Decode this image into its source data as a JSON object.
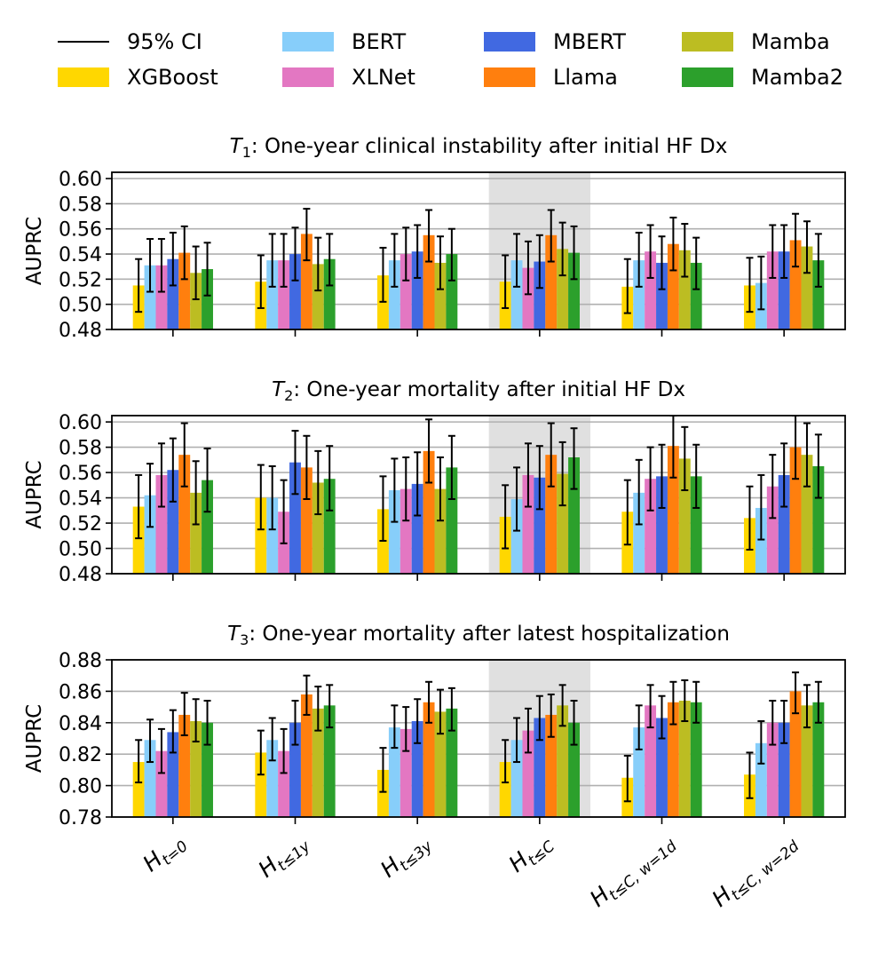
{
  "legend": {
    "ci_label": "95% CI",
    "items": [
      {
        "name": "XGBoost",
        "color": "#FFD700"
      },
      {
        "name": "BERT",
        "color": "#87CEFA"
      },
      {
        "name": "XLNet",
        "color": "#E377C2"
      },
      {
        "name": "MBERT",
        "color": "#4169E1"
      },
      {
        "name": "Llama",
        "color": "#FF7F0E"
      },
      {
        "name": "Mamba",
        "color": "#BCBD22"
      },
      {
        "name": "Mamba2",
        "color": "#2CA02C"
      }
    ]
  },
  "highlight_category_index": 3,
  "chart_data": [
    {
      "type": "bar",
      "title_label": "T",
      "title_sub": "1",
      "title_rest": ": One-year clinical instability after initial HF Dx",
      "ylabel": "AUPRC",
      "ylim": [
        0.48,
        0.605
      ],
      "yticks": [
        "0.48",
        "0.50",
        "0.52",
        "0.54",
        "0.56",
        "0.58",
        "0.60"
      ],
      "categories": [
        "H_{t=0}",
        "H_{t≤1y}",
        "H_{t≤3y}",
        "H_{t≤C}",
        "H_{t≤C, w=1d}",
        "H_{t≤C, w=2d}"
      ],
      "show_xticklabels": false,
      "series": [
        {
          "name": "XGBoost",
          "values": [
            0.515,
            0.518,
            0.523,
            0.518,
            0.514,
            0.515
          ],
          "ci_low": [
            0.494,
            0.497,
            0.502,
            0.497,
            0.493,
            0.494
          ],
          "ci_high": [
            0.536,
            0.539,
            0.545,
            0.539,
            0.536,
            0.537
          ]
        },
        {
          "name": "BERT",
          "values": [
            0.531,
            0.535,
            0.535,
            0.535,
            0.535,
            0.517
          ],
          "ci_low": [
            0.51,
            0.514,
            0.514,
            0.514,
            0.514,
            0.496
          ],
          "ci_high": [
            0.552,
            0.556,
            0.556,
            0.556,
            0.557,
            0.538
          ]
        },
        {
          "name": "XLNet",
          "values": [
            0.531,
            0.535,
            0.54,
            0.529,
            0.542,
            0.542
          ],
          "ci_low": [
            0.51,
            0.514,
            0.519,
            0.508,
            0.521,
            0.521
          ],
          "ci_high": [
            0.552,
            0.556,
            0.561,
            0.55,
            0.563,
            0.563
          ]
        },
        {
          "name": "MBERT",
          "values": [
            0.536,
            0.54,
            0.542,
            0.534,
            0.533,
            0.542
          ],
          "ci_low": [
            0.515,
            0.519,
            0.521,
            0.513,
            0.512,
            0.521
          ],
          "ci_high": [
            0.557,
            0.561,
            0.563,
            0.555,
            0.554,
            0.563
          ]
        },
        {
          "name": "Llama",
          "values": [
            0.541,
            0.556,
            0.555,
            0.555,
            0.548,
            0.551
          ],
          "ci_low": [
            0.52,
            0.535,
            0.534,
            0.534,
            0.527,
            0.53
          ],
          "ci_high": [
            0.562,
            0.576,
            0.575,
            0.575,
            0.569,
            0.572
          ]
        },
        {
          "name": "Mamba",
          "values": [
            0.525,
            0.532,
            0.533,
            0.544,
            0.543,
            0.546
          ],
          "ci_low": [
            0.504,
            0.511,
            0.512,
            0.523,
            0.522,
            0.525
          ],
          "ci_high": [
            0.546,
            0.553,
            0.554,
            0.565,
            0.564,
            0.566
          ]
        },
        {
          "name": "Mamba2",
          "values": [
            0.528,
            0.536,
            0.54,
            0.541,
            0.533,
            0.535
          ],
          "ci_low": [
            0.507,
            0.515,
            0.519,
            0.52,
            0.512,
            0.514
          ],
          "ci_high": [
            0.549,
            0.556,
            0.56,
            0.562,
            0.553,
            0.556
          ]
        }
      ]
    },
    {
      "type": "bar",
      "title_label": "T",
      "title_sub": "2",
      "title_rest": ": One-year mortality after initial HF Dx",
      "ylabel": "AUPRC",
      "ylim": [
        0.48,
        0.605
      ],
      "yticks": [
        "0.48",
        "0.50",
        "0.52",
        "0.54",
        "0.56",
        "0.58",
        "0.60"
      ],
      "categories": [
        "H_{t=0}",
        "H_{t≤1y}",
        "H_{t≤3y}",
        "H_{t≤C}",
        "H_{t≤C, w=1d}",
        "H_{t≤C, w=2d}"
      ],
      "show_xticklabels": false,
      "series": [
        {
          "name": "XGBoost",
          "values": [
            0.533,
            0.54,
            0.531,
            0.525,
            0.529,
            0.524
          ],
          "ci_low": [
            0.508,
            0.515,
            0.506,
            0.5,
            0.503,
            0.499
          ],
          "ci_high": [
            0.558,
            0.566,
            0.557,
            0.55,
            0.554,
            0.549
          ]
        },
        {
          "name": "BERT",
          "values": [
            0.542,
            0.54,
            0.546,
            0.539,
            0.544,
            0.532
          ],
          "ci_low": [
            0.517,
            0.515,
            0.521,
            0.514,
            0.519,
            0.507
          ],
          "ci_high": [
            0.567,
            0.565,
            0.571,
            0.564,
            0.57,
            0.558
          ]
        },
        {
          "name": "XLNet",
          "values": [
            0.558,
            0.529,
            0.547,
            0.558,
            0.555,
            0.549
          ],
          "ci_low": [
            0.533,
            0.504,
            0.522,
            0.533,
            0.53,
            0.524
          ],
          "ci_high": [
            0.583,
            0.554,
            0.572,
            0.583,
            0.58,
            0.574
          ]
        },
        {
          "name": "MBERT",
          "values": [
            0.562,
            0.568,
            0.551,
            0.556,
            0.557,
            0.558
          ],
          "ci_low": [
            0.537,
            0.543,
            0.526,
            0.531,
            0.532,
            0.533
          ],
          "ci_high": [
            0.587,
            0.593,
            0.576,
            0.581,
            0.582,
            0.583
          ]
        },
        {
          "name": "Llama",
          "values": [
            0.574,
            0.564,
            0.577,
            0.574,
            0.581,
            0.58
          ],
          "ci_low": [
            0.549,
            0.539,
            0.552,
            0.549,
            0.556,
            0.555
          ],
          "ci_high": [
            0.599,
            0.589,
            0.602,
            0.599,
            0.605,
            0.605
          ]
        },
        {
          "name": "Mamba",
          "values": [
            0.544,
            0.552,
            0.547,
            0.559,
            0.571,
            0.574
          ],
          "ci_low": [
            0.519,
            0.527,
            0.522,
            0.534,
            0.546,
            0.549
          ],
          "ci_high": [
            0.569,
            0.577,
            0.572,
            0.584,
            0.596,
            0.599
          ]
        },
        {
          "name": "Mamba2",
          "values": [
            0.554,
            0.555,
            0.564,
            0.572,
            0.557,
            0.565
          ],
          "ci_low": [
            0.529,
            0.53,
            0.539,
            0.547,
            0.532,
            0.54
          ],
          "ci_high": [
            0.579,
            0.581,
            0.589,
            0.595,
            0.582,
            0.59
          ]
        }
      ]
    },
    {
      "type": "bar",
      "title_label": "T",
      "title_sub": "3",
      "title_rest": ": One-year mortality after latest hospitalization",
      "ylabel": "AUPRC",
      "ylim": [
        0.78,
        0.88
      ],
      "yticks": [
        "0.78",
        "0.80",
        "0.82",
        "0.84",
        "0.86",
        "0.88"
      ],
      "categories": [
        "H_{t=0}",
        "H_{t≤1y}",
        "H_{t≤3y}",
        "H_{t≤C}",
        "H_{t≤C, w=1d}",
        "H_{t≤C, w=2d}"
      ],
      "show_xticklabels": true,
      "series": [
        {
          "name": "XGBoost",
          "values": [
            0.815,
            0.821,
            0.81,
            0.815,
            0.805,
            0.807
          ],
          "ci_low": [
            0.802,
            0.807,
            0.796,
            0.802,
            0.79,
            0.792
          ],
          "ci_high": [
            0.829,
            0.835,
            0.824,
            0.829,
            0.819,
            0.821
          ]
        },
        {
          "name": "BERT",
          "values": [
            0.829,
            0.829,
            0.837,
            0.829,
            0.837,
            0.827
          ],
          "ci_low": [
            0.815,
            0.816,
            0.824,
            0.815,
            0.823,
            0.814
          ],
          "ci_high": [
            0.842,
            0.843,
            0.851,
            0.843,
            0.851,
            0.841
          ]
        },
        {
          "name": "XLNet",
          "values": [
            0.822,
            0.822,
            0.836,
            0.835,
            0.851,
            0.84
          ],
          "ci_low": [
            0.808,
            0.808,
            0.822,
            0.821,
            0.837,
            0.826
          ],
          "ci_high": [
            0.836,
            0.836,
            0.85,
            0.849,
            0.864,
            0.854
          ]
        },
        {
          "name": "MBERT",
          "values": [
            0.834,
            0.84,
            0.841,
            0.843,
            0.843,
            0.84
          ],
          "ci_low": [
            0.821,
            0.826,
            0.827,
            0.829,
            0.83,
            0.827
          ],
          "ci_high": [
            0.848,
            0.854,
            0.855,
            0.857,
            0.857,
            0.854
          ]
        },
        {
          "name": "Llama",
          "values": [
            0.845,
            0.858,
            0.853,
            0.845,
            0.853,
            0.86
          ],
          "ci_low": [
            0.832,
            0.845,
            0.84,
            0.831,
            0.839,
            0.846
          ],
          "ci_high": [
            0.859,
            0.87,
            0.866,
            0.858,
            0.866,
            0.872
          ]
        },
        {
          "name": "Mamba",
          "values": [
            0.841,
            0.849,
            0.847,
            0.851,
            0.854,
            0.851
          ],
          "ci_low": [
            0.828,
            0.835,
            0.833,
            0.838,
            0.841,
            0.837
          ],
          "ci_high": [
            0.855,
            0.863,
            0.861,
            0.864,
            0.867,
            0.864
          ]
        },
        {
          "name": "Mamba2",
          "values": [
            0.84,
            0.851,
            0.849,
            0.84,
            0.853,
            0.853
          ],
          "ci_low": [
            0.826,
            0.837,
            0.835,
            0.826,
            0.84,
            0.84
          ],
          "ci_high": [
            0.854,
            0.864,
            0.862,
            0.854,
            0.866,
            0.866
          ]
        }
      ]
    }
  ]
}
